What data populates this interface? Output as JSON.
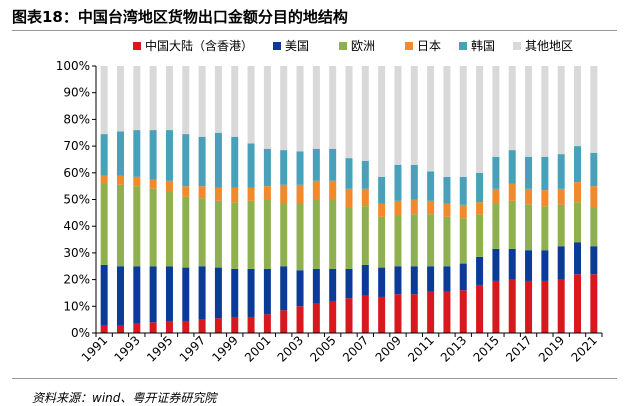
{
  "header": {
    "title": "图表18：中国台湾地区货物出口金额分目的地结构"
  },
  "footer": {
    "source": "资料来源：wind、粤开证券研究院"
  },
  "colors": {
    "中国大陆（含香港）": "#d7191f",
    "美国": "#0b3b97",
    "欧洲": "#8fb04f",
    "日本": "#f08a2c",
    "韩国": "#48a1b9",
    "其他地区": "#d9d9d9"
  },
  "chart_data": {
    "type": "bar",
    "stacked": true,
    "title": "图表18：中国台湾地区货物出口金额分目的地结构",
    "xlabel": "",
    "ylabel": "",
    "ylim": [
      0,
      100
    ],
    "yticks": [
      "0%",
      "10%",
      "20%",
      "30%",
      "40%",
      "50%",
      "60%",
      "70%",
      "80%",
      "90%",
      "100%"
    ],
    "legend_position": "top",
    "x": [
      "1991",
      "1992",
      "1993",
      "1994",
      "1995",
      "1996",
      "1997",
      "1998",
      "1999",
      "2000",
      "2001",
      "2002",
      "2003",
      "2004",
      "2005",
      "2006",
      "2007",
      "2008",
      "2009",
      "2010",
      "2011",
      "2012",
      "2013",
      "2014",
      "2015",
      "2016",
      "2017",
      "2018",
      "2019",
      "2020",
      "2021"
    ],
    "xtick_labels": [
      "1991",
      "1993",
      "1995",
      "1997",
      "1999",
      "2001",
      "2003",
      "2005",
      "2007",
      "2009",
      "2011",
      "2013",
      "2015",
      "2017",
      "2019",
      "2021"
    ],
    "series": [
      {
        "name": "中国大陆（含香港）",
        "values": [
          3,
          3,
          3.5,
          4,
          4.5,
          4.5,
          5,
          5.5,
          6,
          6,
          7,
          8.5,
          10,
          11,
          12,
          13,
          14,
          13.5,
          14.5,
          14.5,
          15.5,
          15.5,
          16,
          18,
          19.5,
          20,
          19.5,
          19.5,
          20,
          22,
          22
        ]
      },
      {
        "name": "美国",
        "values": [
          22.5,
          22,
          21.5,
          21,
          20.5,
          20,
          20,
          19,
          18,
          18,
          17,
          16.5,
          13.5,
          13,
          12,
          11,
          11.5,
          11,
          10.5,
          10.5,
          9.5,
          9.5,
          10,
          10.5,
          12,
          11.5,
          11.5,
          11.5,
          12.5,
          12,
          10.5
        ]
      },
      {
        "name": "欧洲",
        "values": [
          30.5,
          30.5,
          30,
          29,
          28,
          26.5,
          25.5,
          25,
          25,
          25.5,
          26,
          23.5,
          25,
          26,
          26,
          23,
          22,
          19,
          19,
          19.5,
          19.5,
          18.5,
          17,
          16,
          17,
          18,
          17,
          16.5,
          15.5,
          15,
          14.5
        ]
      },
      {
        "name": "日本",
        "values": [
          3,
          3.5,
          3.5,
          3.5,
          4,
          4,
          4.5,
          5,
          5.5,
          5,
          5,
          7,
          7,
          7,
          7,
          7,
          6.5,
          5,
          5.5,
          5.5,
          5,
          5,
          5,
          4.5,
          5.5,
          6.5,
          6,
          6,
          6,
          7.5,
          8
        ]
      },
      {
        "name": "韩国",
        "values": [
          15.5,
          16.5,
          17.5,
          18.5,
          19,
          19.5,
          18.5,
          20.5,
          19,
          16.5,
          14,
          13,
          12.5,
          12,
          12,
          11.5,
          10.5,
          10,
          13.5,
          13,
          11,
          10,
          10.5,
          11,
          12,
          12.5,
          12,
          12.5,
          13,
          13.5,
          12.5
        ]
      },
      {
        "name": "其他地区",
        "values": [
          25.5,
          24.5,
          24,
          24,
          24,
          25.5,
          26.5,
          25,
          26.5,
          29,
          31,
          31.5,
          32,
          31,
          31,
          34.5,
          35.5,
          41.5,
          37,
          37,
          39.5,
          41.5,
          41.5,
          40,
          34,
          31.5,
          34,
          34,
          33,
          30,
          32.5
        ]
      }
    ]
  }
}
